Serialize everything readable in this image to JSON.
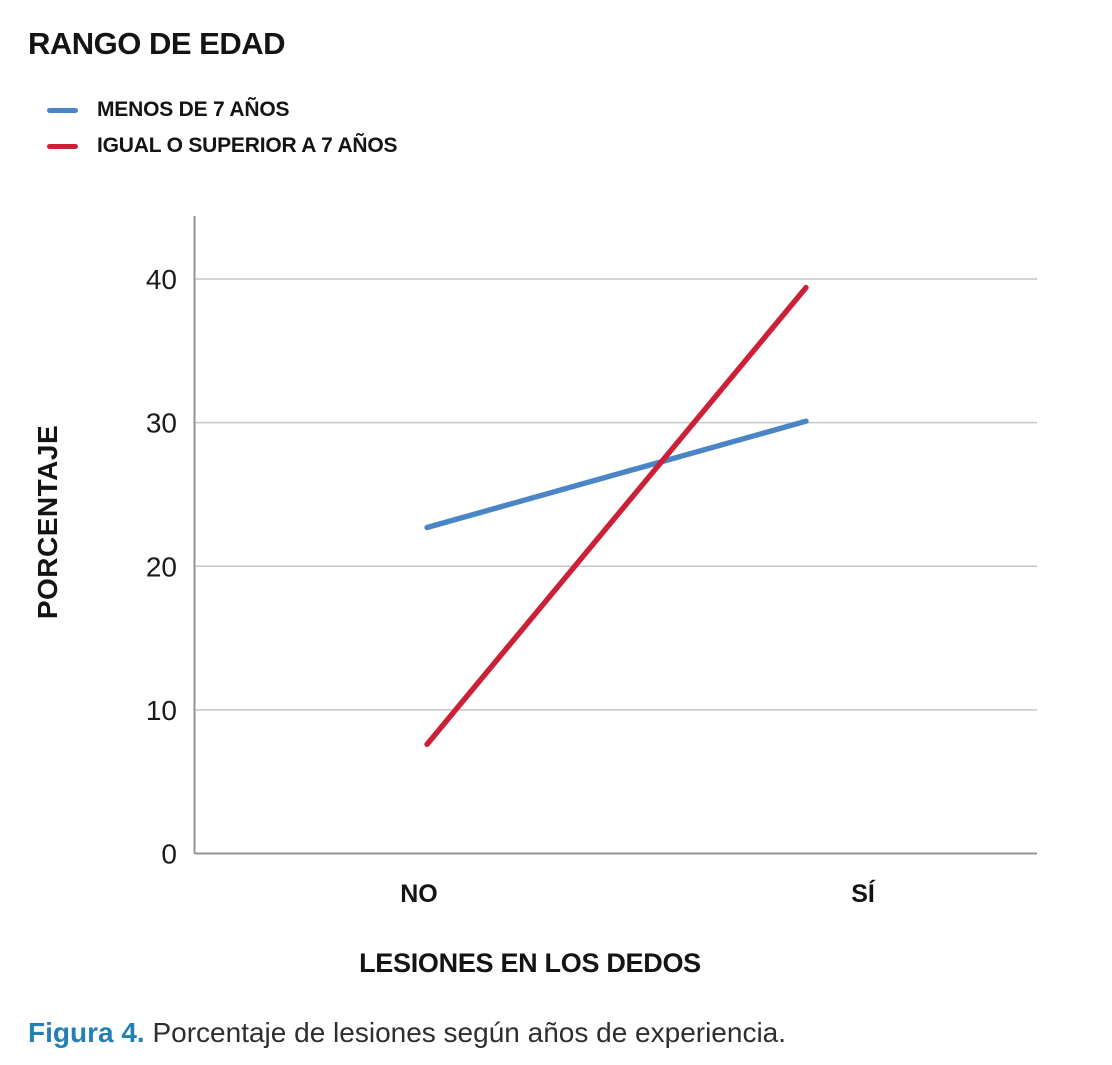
{
  "legend": {
    "title": "RANGO DE EDAD"
  },
  "chart_data": {
    "type": "line",
    "categories": [
      "NO",
      "SÍ"
    ],
    "series": [
      {
        "name": "MENOS DE 7 AÑOS",
        "color": "#4a86c5",
        "values": [
          22.7,
          30.1
        ]
      },
      {
        "name": "IGUAL O SUPERIOR A 7 AÑOS",
        "color": "#cc2037",
        "values": [
          7.6,
          39.4
        ]
      }
    ],
    "xlabel": "LESIONES EN LOS DEDOS",
    "ylabel": "PORCENTAJE",
    "yticks": [
      0,
      10,
      20,
      30,
      40
    ],
    "ylim": [
      0,
      44
    ],
    "grid": true,
    "legend_position": "top-left",
    "gridline_color": "#c6c6c6",
    "axis_color": "#949494",
    "tick_label_color": "#1b1b1b"
  },
  "caption": {
    "label": "Figura 4.",
    "text": "Porcentaje de lesiones según años de experiencia."
  }
}
